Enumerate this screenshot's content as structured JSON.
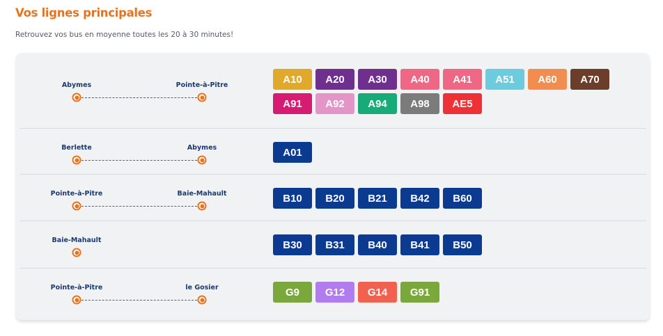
{
  "header": {
    "title": "Vos lignes principales",
    "subtitle": "Retrouvez vos bus en moyenne toutes les 20 à 30 minutes!"
  },
  "routes": [
    {
      "from": "Abymes",
      "to": "Pointe-à-Pitre",
      "lines": [
        {
          "label": "A10",
          "color": "#e0a92a"
        },
        {
          "label": "A20",
          "color": "#6f2f8f"
        },
        {
          "label": "A30",
          "color": "#6f2f8f"
        },
        {
          "label": "A40",
          "color": "#f06785"
        },
        {
          "label": "A41",
          "color": "#f06785"
        },
        {
          "label": "A51",
          "color": "#6ccbdd"
        },
        {
          "label": "A60",
          "color": "#f28d4f"
        },
        {
          "label": "A70",
          "color": "#6b3d2a"
        },
        {
          "label": "A91",
          "color": "#d81b72"
        },
        {
          "label": "A92",
          "color": "#e395c7"
        },
        {
          "label": "A94",
          "color": "#17ab7a"
        },
        {
          "label": "A98",
          "color": "#7b7b7b"
        },
        {
          "label": "AE5",
          "color": "#ef3136"
        }
      ]
    },
    {
      "from": "Berlette",
      "to": "Abymes",
      "lines": [
        {
          "label": "A01",
          "color": "#0b3a91"
        }
      ]
    },
    {
      "from": "Pointe-à-Pitre",
      "to": "Baie-Mahault",
      "lines": [
        {
          "label": "B10",
          "color": "#0b3a91"
        },
        {
          "label": "B20",
          "color": "#0b3a91"
        },
        {
          "label": "B21",
          "color": "#0b3a91"
        },
        {
          "label": "B42",
          "color": "#0b3a91"
        },
        {
          "label": "B60",
          "color": "#0b3a91"
        }
      ]
    },
    {
      "from": "Baie-Mahault",
      "to": "",
      "lines": [
        {
          "label": "B30",
          "color": "#0b3a91"
        },
        {
          "label": "B31",
          "color": "#0b3a91"
        },
        {
          "label": "B40",
          "color": "#0b3a91"
        },
        {
          "label": "B41",
          "color": "#0b3a91"
        },
        {
          "label": "B50",
          "color": "#0b3a91"
        }
      ]
    },
    {
      "from": "Pointe-à-Pitre",
      "to": "le Gosier",
      "lines": [
        {
          "label": "G9",
          "color": "#7aa83a"
        },
        {
          "label": "G12",
          "color": "#b17cf0"
        },
        {
          "label": "G14",
          "color": "#f2604f"
        },
        {
          "label": "G91",
          "color": "#7aa83a"
        }
      ]
    }
  ],
  "colors": {
    "accent": "#e8731c",
    "stop_text": "#1b3a6b",
    "card_bg": "#f1f2f4"
  }
}
